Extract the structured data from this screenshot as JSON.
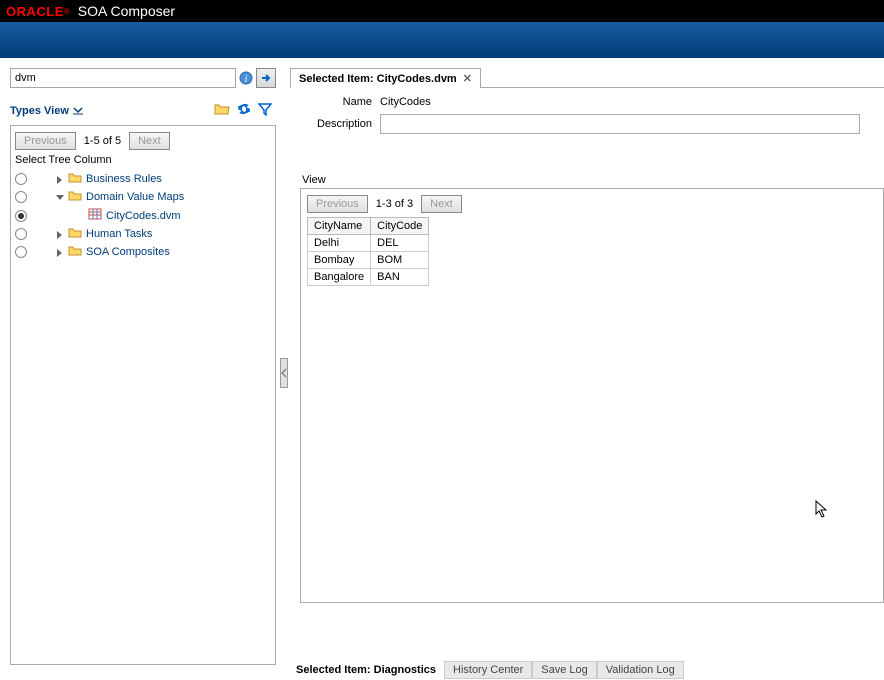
{
  "header": {
    "brand": "ORACLE",
    "app_title": "SOA Composer"
  },
  "search": {
    "value": "dvm"
  },
  "types_view": {
    "label": "Types View"
  },
  "tree": {
    "pager": {
      "prev": "Previous",
      "range": "1-5 of 5",
      "next": "Next"
    },
    "select_label": "Select Tree Column",
    "items": [
      {
        "label": "Business Rules",
        "indent": 1,
        "expanded": false,
        "checked": false,
        "icon": "folder"
      },
      {
        "label": "Domain Value Maps",
        "indent": 1,
        "expanded": true,
        "checked": false,
        "icon": "folder"
      },
      {
        "label": "CityCodes.dvm",
        "indent": 2,
        "expanded": null,
        "checked": true,
        "icon": "grid"
      },
      {
        "label": "Human Tasks",
        "indent": 1,
        "expanded": false,
        "checked": false,
        "icon": "folder"
      },
      {
        "label": "SOA Composites",
        "indent": 1,
        "expanded": false,
        "checked": false,
        "icon": "folder"
      }
    ]
  },
  "selected": {
    "tab_prefix": "Selected Item: ",
    "tab_file": "CityCodes.dvm",
    "name_label": "Name",
    "name_value": "CityCodes",
    "desc_label": "Description",
    "desc_value": ""
  },
  "view": {
    "label": "View",
    "pager": {
      "prev": "Previous",
      "range": "1-3 of 3",
      "next": "Next"
    },
    "columns": [
      "CityName",
      "CityCode"
    ],
    "rows": [
      [
        "Delhi",
        "DEL"
      ],
      [
        "Bombay",
        "BOM"
      ],
      [
        "Bangalore",
        "BAN"
      ]
    ]
  },
  "diagnostics": {
    "label": "Selected Item: Diagnostics",
    "tabs": [
      "History Center",
      "Save Log",
      "Validation Log"
    ]
  }
}
